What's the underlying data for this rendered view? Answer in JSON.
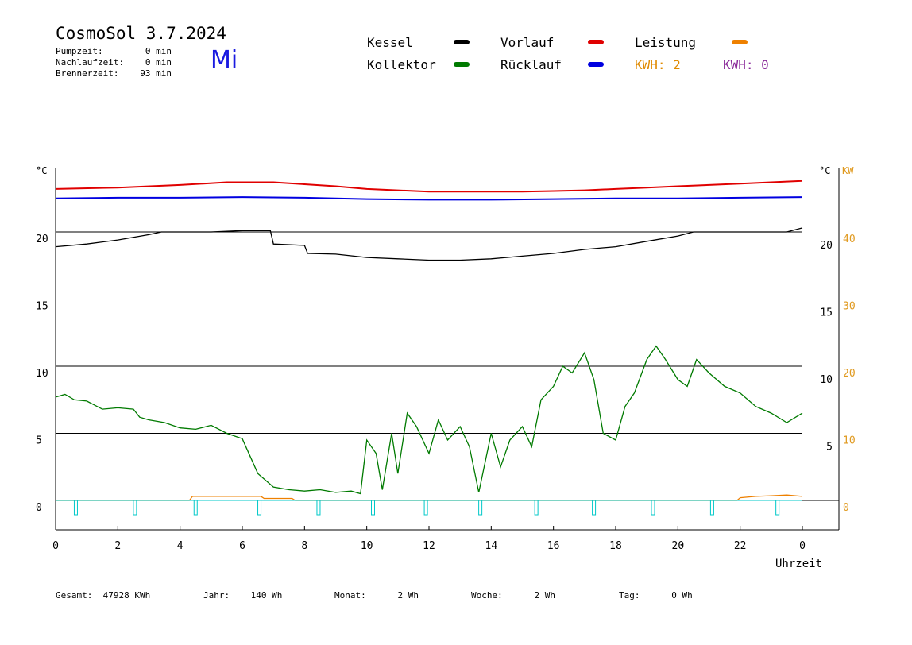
{
  "header": {
    "title": "CosmoSol 3.7.2024",
    "weekday": "Mi",
    "weekday_color": "#1a1ae0",
    "stats": [
      {
        "label": "Pumpzeit:",
        "value": "0 min"
      },
      {
        "label": "Nachlaufzeit:",
        "value": "0 min"
      },
      {
        "label": "Brennerzeit:",
        "value": "93 min"
      }
    ]
  },
  "legend": {
    "items": [
      {
        "label": "Kessel",
        "color": "#000000"
      },
      {
        "label": "Vorlauf",
        "color": "#e00000"
      },
      {
        "label": "Leistung",
        "color": "#ee8000"
      },
      {
        "label": "Kollektor",
        "color": "#007a00"
      },
      {
        "label": "Rücklauf",
        "color": "#0000e0"
      }
    ],
    "kwh_orange": "KWH: 2",
    "kwh_orange_color": "#e08a00",
    "kwh_purple": "KWH: 0",
    "kwh_purple_color": "#8a2a9a"
  },
  "footer": [
    {
      "label": "Gesamt:",
      "value": "47928 KWh"
    },
    {
      "label": "Jahr:",
      "value": "140 Wh"
    },
    {
      "label": "Monat:",
      "value": "2 Wh"
    },
    {
      "label": "Woche:",
      "value": "2 Wh"
    },
    {
      "label": "Tag:",
      "value": "0 Wh"
    }
  ],
  "chart_data": {
    "type": "line",
    "xlabel": "Uhrzeit",
    "xlim": [
      0,
      24
    ],
    "x_ticks": [
      "0",
      "2",
      "4",
      "6",
      "8",
      "10",
      "12",
      "14",
      "16",
      "18",
      "20",
      "22",
      "0"
    ],
    "y_left_unit": "°C",
    "y_left_ticks": [
      "0",
      "5",
      "10",
      "15",
      "20"
    ],
    "y_right_unit": "°C",
    "y_right_ticks": [
      "5",
      "10",
      "15",
      "20"
    ],
    "y_kw_unit": "KW",
    "y_kw_ticks": [
      "0",
      "10",
      "20",
      "30",
      "40"
    ],
    "y_kw_color": "#e09a20",
    "ylim": [
      -2,
      25
    ],
    "grid_y": [
      0,
      5,
      10,
      15,
      20
    ],
    "series": [
      {
        "name": "Vorlauf",
        "color": "#e00000",
        "x": [
          0,
          2,
          4,
          5.5,
          7,
          8,
          9,
          10,
          11,
          12,
          13,
          14,
          15,
          16,
          17,
          18,
          19,
          20,
          21,
          22,
          23,
          24
        ],
        "y": [
          23.2,
          23.3,
          23.5,
          23.7,
          23.7,
          23.55,
          23.4,
          23.2,
          23.1,
          23.0,
          23.0,
          23.0,
          23.0,
          23.05,
          23.1,
          23.2,
          23.3,
          23.4,
          23.5,
          23.6,
          23.7,
          23.8
        ]
      },
      {
        "name": "Rücklauf",
        "color": "#0000e0",
        "x": [
          0,
          2,
          4,
          6,
          8,
          10,
          12,
          14,
          16,
          18,
          20,
          22,
          24
        ],
        "y": [
          22.5,
          22.55,
          22.55,
          22.6,
          22.55,
          22.45,
          22.4,
          22.4,
          22.45,
          22.5,
          22.5,
          22.55,
          22.6
        ]
      },
      {
        "name": "Kessel",
        "color": "#000000",
        "x": [
          0,
          1,
          2,
          3,
          3.4,
          5,
          6,
          6.9,
          7,
          8,
          8.1,
          9,
          10,
          11,
          12,
          13,
          14,
          15,
          16,
          17,
          18,
          19,
          20,
          20.5,
          22,
          23.5,
          24
        ],
        "y": [
          18.9,
          19.1,
          19.4,
          19.8,
          20,
          20,
          20.1,
          20.1,
          19.1,
          19,
          18.4,
          18.35,
          18.1,
          18.0,
          17.9,
          17.9,
          18.0,
          18.2,
          18.4,
          18.7,
          18.9,
          19.3,
          19.7,
          20,
          20,
          20,
          20.3
        ]
      },
      {
        "name": "Kollektor",
        "color": "#007a00",
        "x": [
          0,
          0.3,
          0.6,
          1,
          1.5,
          2,
          2.5,
          2.7,
          3,
          3.5,
          4,
          4.5,
          5,
          5.5,
          6,
          6.5,
          7,
          7.5,
          8,
          8.5,
          9,
          9.5,
          9.8,
          10,
          10.3,
          10.5,
          10.8,
          11,
          11.3,
          11.6,
          12,
          12.3,
          12.6,
          13,
          13.3,
          13.6,
          14,
          14.3,
          14.6,
          15,
          15.3,
          15.6,
          16,
          16.3,
          16.6,
          17,
          17.3,
          17.6,
          18,
          18.3,
          18.6,
          19,
          19.3,
          19.6,
          20,
          20.3,
          20.6,
          21,
          21.5,
          22,
          22.5,
          23,
          23.5,
          24
        ],
        "y": [
          7.7,
          7.9,
          7.5,
          7.4,
          6.8,
          6.9,
          6.8,
          6.2,
          6.0,
          5.8,
          5.4,
          5.3,
          5.6,
          5.0,
          4.6,
          2.0,
          1.0,
          0.8,
          0.7,
          0.8,
          0.6,
          0.7,
          0.5,
          4.5,
          3.5,
          0.8,
          5.0,
          2.0,
          6.5,
          5.5,
          3.5,
          6.0,
          4.5,
          5.5,
          4.0,
          0.6,
          5.0,
          2.5,
          4.5,
          5.5,
          4.0,
          7.5,
          8.5,
          10.0,
          9.5,
          11.0,
          9.0,
          5.0,
          4.5,
          7.0,
          8.0,
          10.5,
          11.5,
          10.5,
          9.0,
          8.5,
          10.5,
          9.5,
          8.5,
          8.0,
          7.0,
          6.5,
          5.8,
          6.5
        ]
      },
      {
        "name": "Leistung",
        "color": "#ee8000",
        "x": [
          0,
          4.3,
          4.4,
          6.6,
          6.7,
          7.6,
          7.7,
          21.9,
          22,
          22.5,
          23,
          23.5,
          24
        ],
        "y": [
          0,
          0,
          0.3,
          0.3,
          0.15,
          0.15,
          0,
          0,
          0.2,
          0.3,
          0.35,
          0.4,
          0.3
        ]
      }
    ],
    "pump_markers": {
      "color": "#00c8c8",
      "x": [
        0.65,
        2.55,
        4.5,
        6.55,
        8.45,
        10.2,
        11.9,
        13.65,
        15.45,
        17.3,
        19.2,
        21.1,
        23.2
      ]
    }
  }
}
